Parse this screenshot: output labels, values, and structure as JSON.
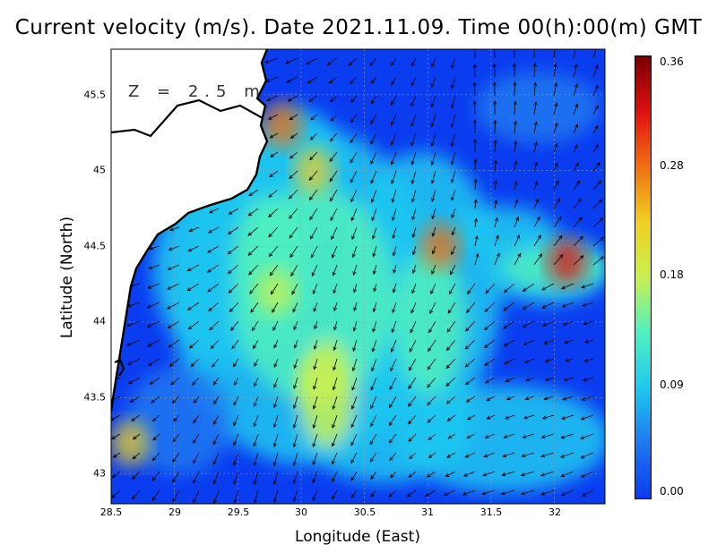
{
  "title": "Current velocity (m/s). Date 2021.11.09. Time 00(h):00(m) GMT",
  "depth_label": "Z = 2.5 m",
  "colors": {
    "ramp": [
      "#0a3cf0",
      "#1e78f0",
      "#1ec8f0",
      "#50f0c0",
      "#c8f050",
      "#f0d020",
      "#f07010",
      "#e01010",
      "#7a0000"
    ],
    "land": "#ffffff",
    "coast": "#000000",
    "grid": "#a0a0a0"
  },
  "chart_data": {
    "type": "heatmap",
    "xlabel": "Longitude (East)",
    "ylabel": "Latitude (North)",
    "xlim": [
      28.5,
      32.4
    ],
    "ylim": [
      42.8,
      45.8
    ],
    "xticks": [
      "28.5",
      "29",
      "29.5",
      "30",
      "30.5",
      "31",
      "31.5",
      "32"
    ],
    "yticks": [
      "43",
      "43.5",
      "44",
      "44.5",
      "45",
      "45.5"
    ],
    "colorbar": {
      "min": 0.0,
      "max": 0.36,
      "ticks": [
        "0.36",
        "0.28",
        "0.18",
        "0.09",
        "0.00"
      ],
      "tick_values": [
        0.36,
        0.28,
        0.18,
        0.09,
        0.0
      ]
    },
    "hotspots": [
      {
        "lon": 32.1,
        "lat": 44.4,
        "value": 0.3
      },
      {
        "lon": 31.1,
        "lat": 44.5,
        "value": 0.28
      },
      {
        "lon": 29.85,
        "lat": 45.3,
        "value": 0.27
      },
      {
        "lon": 28.65,
        "lat": 43.2,
        "value": 0.24
      },
      {
        "lon": 30.1,
        "lat": 45.0,
        "value": 0.22
      },
      {
        "lon": 30.15,
        "lat": 43.6,
        "value": 0.19
      },
      {
        "lon": 29.8,
        "lat": 44.2,
        "value": 0.2
      }
    ]
  }
}
